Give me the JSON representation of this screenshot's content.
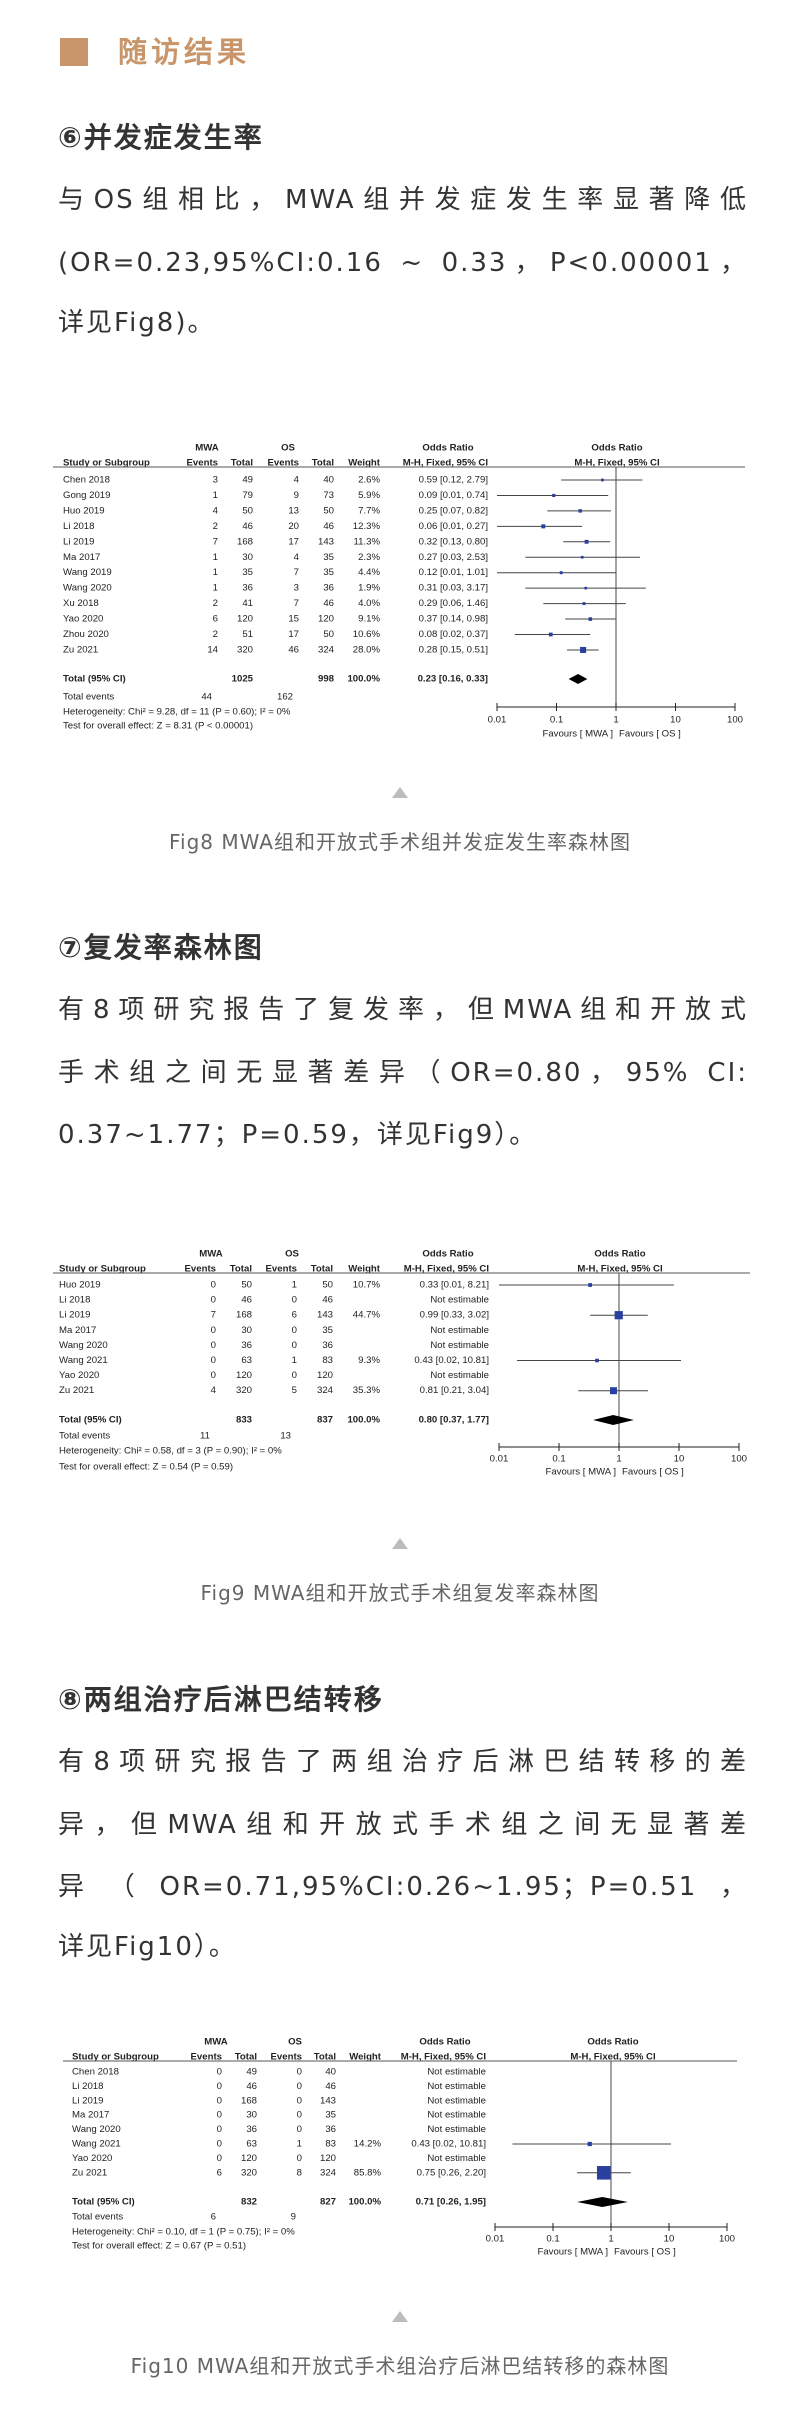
{
  "section": {
    "title": "随访结果",
    "accent_color": "#c8966a"
  },
  "blocks": [
    {
      "heading": "⑥并发症发生率",
      "lines": [
        "与OS组相比，MWA组并发症发生率显著降低",
        "(OR=0.23,95%CI:0.16 ~ 0.33，P<0.00001，",
        "详见Fig8)。"
      ],
      "caption": "Fig8 MWA组和开放式手术组并发症发生率森林图"
    },
    {
      "heading": "⑦复发率森林图",
      "lines": [
        "有8项研究报告了复发率，但MWA组和开放式",
        "手术组之间无显著差异（OR=0.80，95%  CI:",
        "0.37~1.77；P=0.59，详见Fig9）。"
      ],
      "caption": "Fig9 MWA组和开放式手术组复发率森林图"
    },
    {
      "heading": "⑧两组治疗后淋巴结转移",
      "lines": [
        "有8项研究报告了两组治疗后淋巴结转移的差",
        "异，但MWA组和开放式手术组之间无显著差",
        "异（OR=0.71,95%CI:0.26~1.95；P=0.51，",
        "详见Fig10）。"
      ],
      "caption": "Fig10 MWA组和开放式手术组治疗后淋巴结转移的森林图"
    }
  ],
  "chart_data": [
    {
      "type": "forest",
      "groups": [
        "MWA",
        "OS"
      ],
      "headers": {
        "study": "Study or Subgroup",
        "events": "Events",
        "total": "Total",
        "weight": "Weight",
        "or_title": "Odds Ratio",
        "or_method": "M-H, Fixed, 95% CI"
      },
      "studies": [
        {
          "name": "Chen 2018",
          "me": 3,
          "mt": 49,
          "oe": 4,
          "ot": 40,
          "weight": "2.6%",
          "or_text": "0.59 [0.12, 2.79]",
          "or": 0.59,
          "lo": 0.12,
          "hi": 2.79
        },
        {
          "name": "Gong 2019",
          "me": 1,
          "mt": 79,
          "oe": 9,
          "ot": 73,
          "weight": "5.9%",
          "or_text": "0.09 [0.01, 0.74]",
          "or": 0.09,
          "lo": 0.01,
          "hi": 0.74
        },
        {
          "name": "Huo 2019",
          "me": 4,
          "mt": 50,
          "oe": 13,
          "ot": 50,
          "weight": "7.7%",
          "or_text": "0.25 [0.07, 0.82]",
          "or": 0.25,
          "lo": 0.07,
          "hi": 0.82
        },
        {
          "name": "Li 2018",
          "me": 2,
          "mt": 46,
          "oe": 20,
          "ot": 46,
          "weight": "12.3%",
          "or_text": "0.06 [0.01, 0.27]",
          "or": 0.06,
          "lo": 0.01,
          "hi": 0.27
        },
        {
          "name": "Li 2019",
          "me": 7,
          "mt": 168,
          "oe": 17,
          "ot": 143,
          "weight": "11.3%",
          "or_text": "0.32 [0.13, 0.80]",
          "or": 0.32,
          "lo": 0.13,
          "hi": 0.8
        },
        {
          "name": "Ma 2017",
          "me": 1,
          "mt": 30,
          "oe": 4,
          "ot": 35,
          "weight": "2.3%",
          "or_text": "0.27 [0.03, 2.53]",
          "or": 0.27,
          "lo": 0.03,
          "hi": 2.53
        },
        {
          "name": "Wang 2019",
          "me": 1,
          "mt": 35,
          "oe": 7,
          "ot": 35,
          "weight": "4.4%",
          "or_text": "0.12 [0.01, 1.01]",
          "or": 0.12,
          "lo": 0.01,
          "hi": 1.01
        },
        {
          "name": "Wang 2020",
          "me": 1,
          "mt": 36,
          "oe": 3,
          "ot": 36,
          "weight": "1.9%",
          "or_text": "0.31 [0.03, 3.17]",
          "or": 0.31,
          "lo": 0.03,
          "hi": 3.17
        },
        {
          "name": "Xu 2018",
          "me": 2,
          "mt": 41,
          "oe": 7,
          "ot": 46,
          "weight": "4.0%",
          "or_text": "0.29 [0.06, 1.46]",
          "or": 0.29,
          "lo": 0.06,
          "hi": 1.46
        },
        {
          "name": "Yao 2020",
          "me": 6,
          "mt": 120,
          "oe": 15,
          "ot": 120,
          "weight": "9.1%",
          "or_text": "0.37 [0.14, 0.98]",
          "or": 0.37,
          "lo": 0.14,
          "hi": 0.98
        },
        {
          "name": "Zhou 2020",
          "me": 2,
          "mt": 51,
          "oe": 17,
          "ot": 50,
          "weight": "10.6%",
          "or_text": "0.08 [0.02, 0.37]",
          "or": 0.08,
          "lo": 0.02,
          "hi": 0.37
        },
        {
          "name": "Zu 2021",
          "me": 14,
          "mt": 320,
          "oe": 46,
          "ot": 324,
          "weight": "28.0%",
          "or_text": "0.28 [0.15, 0.51]",
          "or": 0.28,
          "lo": 0.15,
          "hi": 0.51
        }
      ],
      "total": {
        "label": "Total (95% CI)",
        "mt": 1025,
        "ot": 998,
        "weight": "100.0%",
        "or_text": "0.23 [0.16, 0.33]",
        "or": 0.23,
        "lo": 0.16,
        "hi": 0.33
      },
      "total_events": {
        "label": "Total events",
        "me": 44,
        "oe": 162
      },
      "heterogeneity": "Heterogeneity: Chi² = 9.28, df = 11 (P = 0.60); I² = 0%",
      "overall_effect": "Test for overall effect: Z = 8.31 (P < 0.00001)",
      "x_axis": {
        "scale": "log",
        "range": [
          0.01,
          100
        ],
        "ticks": [
          "0.01",
          "0.1",
          "1",
          "10",
          "100"
        ]
      },
      "favours_left": "Favours [ MWA ]",
      "favours_right": "Favours [ OS ]",
      "colors": {
        "study_marker": "#2b3f9f",
        "total_diamond": "#000000"
      }
    },
    {
      "type": "forest",
      "groups": [
        "MWA",
        "OS"
      ],
      "headers": {
        "study": "Study or Subgroup",
        "events": "Events",
        "total": "Total",
        "weight": "Weight",
        "or_title": "Odds Ratio",
        "or_method": "M-H, Fixed, 95% CI"
      },
      "studies": [
        {
          "name": "Huo 2019",
          "me": 0,
          "mt": 50,
          "oe": 1,
          "ot": 50,
          "weight": "10.7%",
          "or_text": "0.33 [0.01, 8.21]",
          "or": 0.33,
          "lo": 0.01,
          "hi": 8.21
        },
        {
          "name": "Li 2018",
          "me": 0,
          "mt": 46,
          "oe": 0,
          "ot": 46,
          "weight": "",
          "or_text": "Not estimable"
        },
        {
          "name": "Li 2019",
          "me": 7,
          "mt": 168,
          "oe": 6,
          "ot": 143,
          "weight": "44.7%",
          "or_text": "0.99 [0.33, 3.02]",
          "or": 0.99,
          "lo": 0.33,
          "hi": 3.02
        },
        {
          "name": "Ma 2017",
          "me": 0,
          "mt": 30,
          "oe": 0,
          "ot": 35,
          "weight": "",
          "or_text": "Not estimable"
        },
        {
          "name": "Wang 2020",
          "me": 0,
          "mt": 36,
          "oe": 0,
          "ot": 36,
          "weight": "",
          "or_text": "Not estimable"
        },
        {
          "name": "Wang 2021",
          "me": 0,
          "mt": 63,
          "oe": 1,
          "ot": 83,
          "weight": "9.3%",
          "or_text": "0.43 [0.02, 10.81]",
          "or": 0.43,
          "lo": 0.02,
          "hi": 10.81
        },
        {
          "name": "Yao 2020",
          "me": 0,
          "mt": 120,
          "oe": 0,
          "ot": 120,
          "weight": "",
          "or_text": "Not estimable"
        },
        {
          "name": "Zu 2021",
          "me": 4,
          "mt": 320,
          "oe": 5,
          "ot": 324,
          "weight": "35.3%",
          "or_text": "0.81 [0.21, 3.04]",
          "or": 0.81,
          "lo": 0.21,
          "hi": 3.04
        }
      ],
      "total": {
        "label": "Total (95% CI)",
        "mt": 833,
        "ot": 837,
        "weight": "100.0%",
        "or_text": "0.80 [0.37, 1.77]",
        "or": 0.8,
        "lo": 0.37,
        "hi": 1.77
      },
      "total_events": {
        "label": "Total events",
        "me": 11,
        "oe": 13
      },
      "heterogeneity": "Heterogeneity: Chi² = 0.58, df = 3 (P = 0.90); I² = 0%",
      "overall_effect": "Test for overall effect: Z = 0.54 (P = 0.59)",
      "x_axis": {
        "scale": "log",
        "range": [
          0.01,
          100
        ],
        "ticks": [
          "0.01",
          "0.1",
          "1",
          "10",
          "100"
        ]
      },
      "favours_left": "Favours [ MWA ]",
      "favours_right": "Favours [ OS ]",
      "colors": {
        "study_marker": "#2b3f9f",
        "total_diamond": "#000000"
      }
    },
    {
      "type": "forest",
      "groups": [
        "MWA",
        "OS"
      ],
      "headers": {
        "study": "Study or Subgroup",
        "events": "Events",
        "total": "Total",
        "weight": "Weight",
        "or_title": "Odds Ratio",
        "or_method": "M-H, Fixed, 95% CI"
      },
      "studies": [
        {
          "name": "Chen 2018",
          "me": 0,
          "mt": 49,
          "oe": 0,
          "ot": 40,
          "weight": "",
          "or_text": "Not estimable"
        },
        {
          "name": "Li 2018",
          "me": 0,
          "mt": 46,
          "oe": 0,
          "ot": 46,
          "weight": "",
          "or_text": "Not estimable"
        },
        {
          "name": "Li 2019",
          "me": 0,
          "mt": 168,
          "oe": 0,
          "ot": 143,
          "weight": "",
          "or_text": "Not estimable"
        },
        {
          "name": "Ma 2017",
          "me": 0,
          "mt": 30,
          "oe": 0,
          "ot": 35,
          "weight": "",
          "or_text": "Not estimable"
        },
        {
          "name": "Wang 2020",
          "me": 0,
          "mt": 36,
          "oe": 0,
          "ot": 36,
          "weight": "",
          "or_text": "Not estimable"
        },
        {
          "name": "Wang 2021",
          "me": 0,
          "mt": 63,
          "oe": 1,
          "ot": 83,
          "weight": "14.2%",
          "or_text": "0.43 [0.02, 10.81]",
          "or": 0.43,
          "lo": 0.02,
          "hi": 10.81
        },
        {
          "name": "Yao 2020",
          "me": 0,
          "mt": 120,
          "oe": 0,
          "ot": 120,
          "weight": "",
          "or_text": "Not estimable"
        },
        {
          "name": "Zu 2021",
          "me": 6,
          "mt": 320,
          "oe": 8,
          "ot": 324,
          "weight": "85.8%",
          "or_text": "0.75 [0.26, 2.20]",
          "or": 0.75,
          "lo": 0.26,
          "hi": 2.2
        }
      ],
      "total": {
        "label": "Total (95% CI)",
        "mt": 832,
        "ot": 827,
        "weight": "100.0%",
        "or_text": "0.71 [0.26, 1.95]",
        "or": 0.71,
        "lo": 0.26,
        "hi": 1.95
      },
      "total_events": {
        "label": "Total events",
        "me": 6,
        "oe": 9
      },
      "heterogeneity": "Heterogeneity: Chi² = 0.10, df = 1 (P = 0.75); I² = 0%",
      "overall_effect": "Test for overall effect: Z = 0.67 (P = 0.51)",
      "x_axis": {
        "scale": "log",
        "range": [
          0.01,
          100
        ],
        "ticks": [
          "0.01",
          "0.1",
          "1",
          "10",
          "100"
        ]
      },
      "favours_left": "Favours [ MWA ]",
      "favours_right": "Favours [ OS ]",
      "colors": {
        "study_marker": "#2b3f9f",
        "total_diamond": "#000000"
      }
    }
  ]
}
